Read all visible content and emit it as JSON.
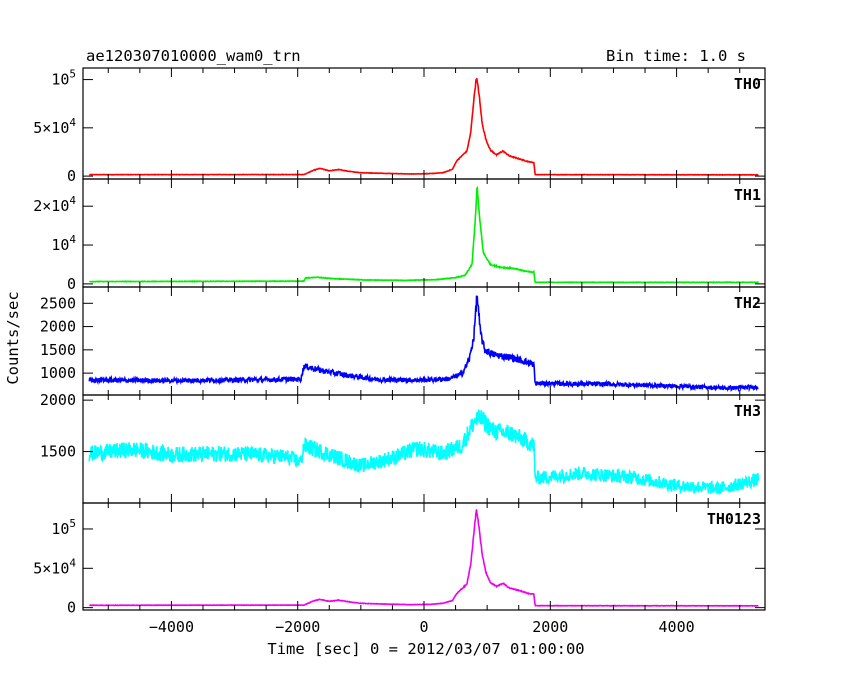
{
  "header": {
    "title": "ae120307010000_wam0_trn",
    "bin_time": "Bin time: 1.0 s"
  },
  "ylabel": "Counts/sec",
  "xlabel": "Time [sec] 0 = 2012/03/07 01:00:00",
  "chart_data": {
    "type": "line",
    "x_range": [
      -5400,
      5400
    ],
    "x_ticks": [
      -4000,
      -2000,
      0,
      2000,
      4000
    ],
    "x_tick_labels": [
      "−4000",
      "−2000",
      "0",
      "2000",
      "4000"
    ],
    "x_minor_step": 500,
    "ylabel": "Counts/sec",
    "xlabel": "Time [sec] 0 = 2012/03/07 01:00:00",
    "panels": [
      {
        "name": "TH0",
        "color": "#ff0000",
        "ylim": [
          -3000,
          112000
        ],
        "y_ticks": [
          0,
          50000,
          100000
        ],
        "y_tick_labels": [
          {
            "base": "0",
            "exp": ""
          },
          {
            "base": "5×10",
            "exp": "4"
          },
          {
            "base": "10",
            "exp": "5"
          }
        ],
        "noise": 0.015,
        "points": [
          [
            -5300,
            1500
          ],
          [
            -1900,
            1600
          ],
          [
            -1750,
            6000
          ],
          [
            -1650,
            8000
          ],
          [
            -1500,
            5500
          ],
          [
            -1350,
            6800
          ],
          [
            -1200,
            5000
          ],
          [
            -1000,
            3500
          ],
          [
            -600,
            2800
          ],
          [
            -200,
            2200
          ],
          [
            100,
            2600
          ],
          [
            300,
            3500
          ],
          [
            450,
            7000
          ],
          [
            520,
            16000
          ],
          [
            600,
            21000
          ],
          [
            680,
            26000
          ],
          [
            740,
            45000
          ],
          [
            790,
            80000
          ],
          [
            830,
            103000
          ],
          [
            870,
            86000
          ],
          [
            920,
            55000
          ],
          [
            980,
            38000
          ],
          [
            1050,
            27000
          ],
          [
            1150,
            22000
          ],
          [
            1250,
            26000
          ],
          [
            1350,
            21000
          ],
          [
            1500,
            18000
          ],
          [
            1650,
            15000
          ],
          [
            1740,
            14000
          ],
          [
            1760,
            1500
          ],
          [
            5300,
            1300
          ]
        ]
      },
      {
        "name": "TH1",
        "color": "#00ee00",
        "ylim": [
          -800,
          27000
        ],
        "y_ticks": [
          0,
          10000,
          20000
        ],
        "y_tick_labels": [
          {
            "base": "0",
            "exp": ""
          },
          {
            "base": "10",
            "exp": "4"
          },
          {
            "base": "2×10",
            "exp": "4"
          }
        ],
        "noise": 0.02,
        "points": [
          [
            -5300,
            600
          ],
          [
            -1900,
            700
          ],
          [
            -1880,
            1500
          ],
          [
            -1700,
            1700
          ],
          [
            -1400,
            1300
          ],
          [
            -900,
            1000
          ],
          [
            -300,
            900
          ],
          [
            200,
            1100
          ],
          [
            500,
            1600
          ],
          [
            650,
            2200
          ],
          [
            760,
            5000
          ],
          [
            810,
            16000
          ],
          [
            840,
            25000
          ],
          [
            880,
            17000
          ],
          [
            940,
            8000
          ],
          [
            1050,
            5000
          ],
          [
            1200,
            4300
          ],
          [
            1400,
            4000
          ],
          [
            1600,
            3300
          ],
          [
            1740,
            3000
          ],
          [
            1760,
            400
          ],
          [
            5300,
            400
          ]
        ]
      },
      {
        "name": "TH2",
        "color": "#0000ff",
        "ylim": [
          530,
          2850
        ],
        "y_ticks": [
          1000,
          1500,
          2000,
          2500
        ],
        "y_tick_labels": [
          {
            "base": "1000",
            "exp": ""
          },
          {
            "base": "1500",
            "exp": ""
          },
          {
            "base": "2000",
            "exp": ""
          },
          {
            "base": "2500",
            "exp": ""
          }
        ],
        "noise": 0.05,
        "points": [
          [
            -5300,
            850
          ],
          [
            -4000,
            840
          ],
          [
            -2500,
            860
          ],
          [
            -1950,
            870
          ],
          [
            -1900,
            1150
          ],
          [
            -1600,
            1050
          ],
          [
            -1200,
            950
          ],
          [
            -700,
            860
          ],
          [
            0,
            850
          ],
          [
            400,
            880
          ],
          [
            600,
            980
          ],
          [
            720,
            1300
          ],
          [
            790,
            1800
          ],
          [
            840,
            2700
          ],
          [
            890,
            1900
          ],
          [
            960,
            1500
          ],
          [
            1100,
            1400
          ],
          [
            1400,
            1330
          ],
          [
            1700,
            1210
          ],
          [
            1740,
            1180
          ],
          [
            1760,
            780
          ],
          [
            3000,
            760
          ],
          [
            4000,
            720
          ],
          [
            4800,
            680
          ],
          [
            5300,
            700
          ]
        ]
      },
      {
        "name": "TH3",
        "color": "#00ffff",
        "ylim": [
          1000,
          2050
        ],
        "y_ticks": [
          1500,
          2000
        ],
        "y_tick_labels": [
          {
            "base": "1500",
            "exp": ""
          },
          {
            "base": "2000",
            "exp": ""
          }
        ],
        "noise": 0.05,
        "points": [
          [
            -5300,
            1480
          ],
          [
            -4600,
            1520
          ],
          [
            -4000,
            1470
          ],
          [
            -3000,
            1480
          ],
          [
            -2200,
            1450
          ],
          [
            -1950,
            1400
          ],
          [
            -1900,
            1560
          ],
          [
            -1400,
            1450
          ],
          [
            -1000,
            1360
          ],
          [
            -500,
            1440
          ],
          [
            -100,
            1530
          ],
          [
            300,
            1480
          ],
          [
            600,
            1560
          ],
          [
            800,
            1800
          ],
          [
            900,
            1820
          ],
          [
            1100,
            1700
          ],
          [
            1400,
            1670
          ],
          [
            1740,
            1560
          ],
          [
            1760,
            1240
          ],
          [
            2500,
            1290
          ],
          [
            3300,
            1250
          ],
          [
            4000,
            1170
          ],
          [
            4700,
            1140
          ],
          [
            5300,
            1230
          ]
        ]
      },
      {
        "name": "TH0123",
        "color": "#ee00ee",
        "ylim": [
          -3000,
          133000
        ],
        "y_ticks": [
          0,
          50000,
          100000
        ],
        "y_tick_labels": [
          {
            "base": "0",
            "exp": ""
          },
          {
            "base": "5×10",
            "exp": "4"
          },
          {
            "base": "10",
            "exp": "5"
          }
        ],
        "noise": 0.015,
        "points": [
          [
            -5300,
            3000
          ],
          [
            -1900,
            3200
          ],
          [
            -1750,
            8500
          ],
          [
            -1650,
            10500
          ],
          [
            -1500,
            8000
          ],
          [
            -1350,
            9500
          ],
          [
            -1200,
            7500
          ],
          [
            -1000,
            5500
          ],
          [
            -600,
            4500
          ],
          [
            -200,
            3800
          ],
          [
            100,
            4200
          ],
          [
            300,
            5500
          ],
          [
            450,
            9000
          ],
          [
            520,
            18000
          ],
          [
            600,
            24000
          ],
          [
            680,
            30000
          ],
          [
            740,
            55000
          ],
          [
            790,
            95000
          ],
          [
            830,
            125000
          ],
          [
            870,
            104000
          ],
          [
            920,
            68000
          ],
          [
            980,
            45000
          ],
          [
            1050,
            32000
          ],
          [
            1150,
            27000
          ],
          [
            1250,
            31000
          ],
          [
            1350,
            25000
          ],
          [
            1500,
            22000
          ],
          [
            1650,
            18000
          ],
          [
            1740,
            17000
          ],
          [
            1760,
            2500
          ],
          [
            5300,
            2300
          ]
        ]
      }
    ]
  }
}
